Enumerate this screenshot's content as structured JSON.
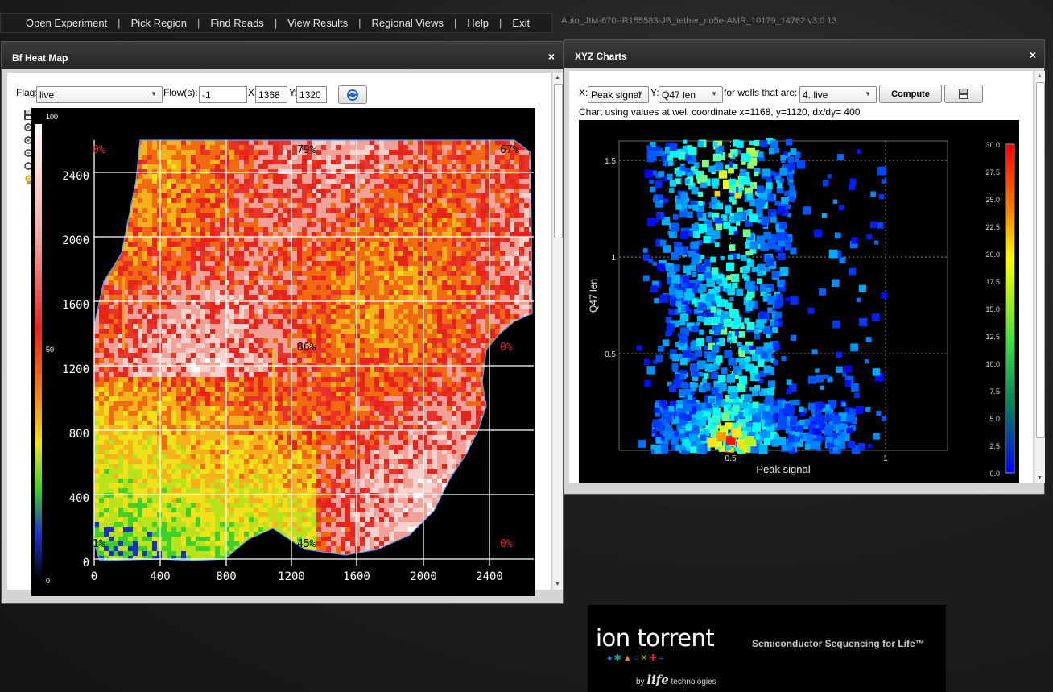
{
  "menu": {
    "items": [
      "Open Experiment",
      "Pick Region",
      "Find Reads",
      "View Results",
      "Regional Views",
      "Help",
      "Exit"
    ],
    "separator": "|"
  },
  "app_title": "Auto_JIM-670--R155583-JB_tether_no5e-AMR_10179_14762   v3.0.13",
  "heatmap_window": {
    "title": "Bf Heat Map",
    "close": "×",
    "flag_label": "Flag:",
    "flag_value": "live",
    "flows_label": "Flow(s):",
    "flows_value": "-1",
    "x_label": "X:",
    "x_value": "1368",
    "y_label": "Y:",
    "y_value": "1320",
    "colorbar_labels": [
      "100",
      "50",
      "0"
    ],
    "x_ticks": [
      "0",
      "400",
      "800",
      "1200",
      "1600",
      "2000",
      "2400"
    ],
    "y_ticks": [
      "2400",
      "2000",
      "1600",
      "1200",
      "800",
      "400",
      "0"
    ],
    "percent_labels": [
      {
        "text": "0%",
        "color": "red",
        "col": 0,
        "row": 0
      },
      {
        "text": "79%",
        "color": "black",
        "col": 1,
        "row": 0
      },
      {
        "text": "67%",
        "color": "black",
        "col": 2,
        "row": 0
      },
      {
        "text": "86%",
        "color": "black",
        "col": 1,
        "row": 1
      },
      {
        "text": "0%",
        "color": "red",
        "col": 2,
        "row": 1
      },
      {
        "text": "1%",
        "color": "black",
        "col": 0,
        "row": 2
      },
      {
        "text": "45%",
        "color": "black",
        "col": 1,
        "row": 2
      },
      {
        "text": "0%",
        "color": "red",
        "col": 2,
        "row": 2
      }
    ]
  },
  "xyz_window": {
    "title": "XYZ Charts",
    "close": "×",
    "x_label": "X:",
    "x_value": "Peak signal",
    "y_label": "Y:",
    "y_value": "Q47 len",
    "wells_label": "for wells that are:",
    "wells_value": "4. live",
    "compute_label": "Compute",
    "info_text": "Chart using values at well coordinate x=1168, y=1120, dx/dy= 400"
  },
  "chart_data": {
    "type": "scatter",
    "xlabel": "Peak signal",
    "ylabel": "Q47 len",
    "xlim": [
      0.14,
      1.2
    ],
    "ylim": [
      0,
      1.6
    ],
    "x_ticks": [
      "0.5",
      "1"
    ],
    "y_ticks": [
      "0.5",
      "1",
      "1.5"
    ],
    "colorbar": {
      "min": 0,
      "max": 30,
      "ticks": [
        "30.0",
        "27.5",
        "25.0",
        "22.5",
        "20.0",
        "17.5",
        "15.0",
        "12.5",
        "10.0",
        "7.5",
        "5.0",
        "2.5",
        "0.0"
      ]
    },
    "grid": true
  },
  "logo": {
    "brand": "ion torrent",
    "tagline": "Semiconductor Sequencing for Life™",
    "by": "by",
    "life": "life",
    "technologies": "technologies"
  },
  "colors": {
    "menu_bg": "#1c1c1c",
    "window_title": "#2e2e2e",
    "heat_red": "#e8231a",
    "accent_blue": "#1e4fb0"
  }
}
